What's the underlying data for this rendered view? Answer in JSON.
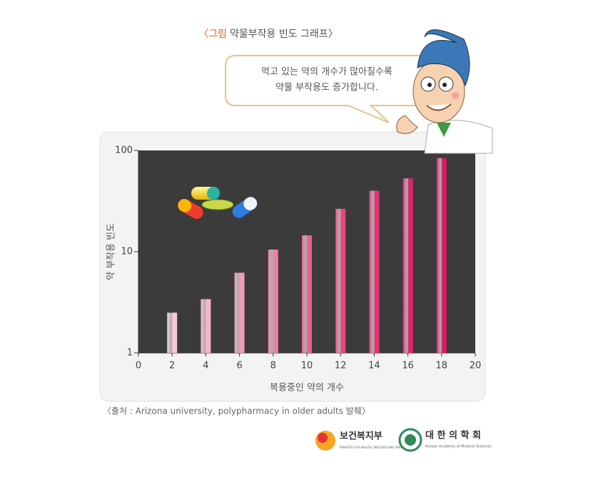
{
  "chart_data": {
    "type": "bar",
    "title_label": "〈그림",
    "title": "약물부작용 빈도 그래프〉",
    "bubble_lines": [
      "먹고 있는 약의 개수가 많아질수록",
      "약물 부작용도 증가합니다."
    ],
    "x": [
      2,
      4,
      6,
      8,
      10,
      12,
      14,
      16,
      18
    ],
    "values": [
      2.5,
      3.4,
      6.2,
      10.5,
      14.5,
      26.5,
      40,
      53,
      84
    ],
    "colors": [
      "#f8c9da",
      "#f6b5cc",
      "#f39abb",
      "#f07ba6",
      "#ec5f93",
      "#e84682",
      "#e43375",
      "#e0246c",
      "#dc1865"
    ],
    "xlim": [
      0,
      20
    ],
    "xticks": [
      0,
      2,
      4,
      6,
      8,
      10,
      12,
      14,
      16,
      18,
      20
    ],
    "ylim": [
      1,
      100
    ],
    "yticks": [
      1,
      10,
      100
    ],
    "log_scale": true,
    "xlabel": "복용중인 약의 개수",
    "ylabel": "약 부작용 빈도",
    "source": "〈출처 : Arizona university, polypharmacy in older adults 발췌〉",
    "logos": [
      {
        "name": "보건복지부",
        "subtitle": "MINISTRY FOR HEALTH, WELFARE AND FAMILY AFFAIRS"
      },
      {
        "name": "대 한 의 학 회",
        "subtitle": "Korean Academy of Medical Sciences"
      }
    ]
  }
}
